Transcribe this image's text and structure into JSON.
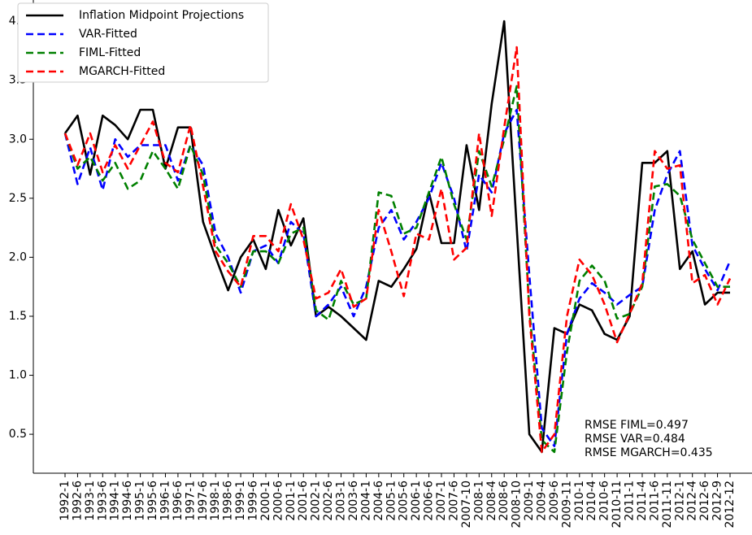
{
  "chart_data": {
    "type": "line",
    "categories": [
      "1992-1",
      "1992-6",
      "1993-1",
      "1993-6",
      "1994-1",
      "1994-6",
      "1995-1",
      "1995-6",
      "1996-1",
      "1996-6",
      "1997-1",
      "1997-6",
      "1998-1",
      "1998-6",
      "1999-1",
      "1999-6",
      "2000-1",
      "2000-6",
      "2001-1",
      "2001-6",
      "2002-1",
      "2002-6",
      "2003-1",
      "2003-6",
      "2004-1",
      "2004-6",
      "2005-1",
      "2005-6",
      "2006-1",
      "2006-6",
      "2007-1",
      "2007-6",
      "2007-10",
      "2008-1",
      "2008-4",
      "2008-6",
      "2008-10",
      "2009-1",
      "2009-4",
      "2009-6",
      "2009-11",
      "2010-1",
      "2010-4",
      "2010-6",
      "2010-11",
      "2011-1",
      "2011-4",
      "2011-6",
      "2011-11",
      "2012-1",
      "2012-4",
      "2012-6",
      "2012-9",
      "2012-12"
    ],
    "series": [
      {
        "name": "Inflation Midpoint Projections",
        "color": "#000000",
        "dash": "solid",
        "values": [
          3.05,
          3.2,
          2.7,
          3.2,
          3.12,
          3.0,
          3.25,
          3.25,
          2.75,
          3.1,
          3.1,
          2.3,
          2.0,
          1.72,
          2.0,
          2.15,
          1.9,
          2.4,
          2.1,
          2.33,
          1.5,
          1.58,
          1.5,
          1.4,
          1.3,
          1.8,
          1.75,
          1.9,
          2.07,
          2.55,
          2.12,
          2.12,
          2.95,
          2.4,
          3.3,
          4.0,
          2.25,
          0.5,
          0.35,
          1.4,
          1.35,
          1.6,
          1.55,
          1.35,
          1.3,
          1.5,
          2.8,
          2.8,
          2.9,
          1.9,
          2.05,
          1.6,
          1.7,
          1.7
        ]
      },
      {
        "name": "VAR-Fitted",
        "color": "#0000ff",
        "dash": "dashed",
        "values": [
          3.05,
          2.62,
          2.93,
          2.57,
          3.0,
          2.85,
          2.95,
          2.95,
          2.95,
          2.65,
          2.95,
          2.78,
          2.2,
          2.0,
          1.7,
          2.05,
          2.1,
          1.95,
          2.3,
          2.2,
          1.5,
          1.6,
          1.75,
          1.5,
          1.75,
          2.25,
          2.4,
          2.15,
          2.3,
          2.5,
          2.8,
          2.5,
          2.05,
          2.7,
          2.55,
          3.05,
          3.25,
          1.85,
          0.55,
          0.4,
          1.35,
          1.65,
          1.78,
          1.7,
          1.6,
          1.68,
          1.75,
          2.4,
          2.7,
          2.9,
          2.1,
          1.9,
          1.72,
          1.97
        ]
      },
      {
        "name": "FIML-Fitted",
        "color": "#008000",
        "dash": "dashed",
        "values": [
          3.05,
          2.75,
          2.85,
          2.65,
          2.8,
          2.58,
          2.65,
          2.9,
          2.75,
          2.58,
          2.95,
          2.7,
          2.1,
          1.95,
          1.75,
          2.05,
          2.05,
          1.95,
          2.2,
          2.25,
          1.55,
          1.47,
          1.8,
          1.6,
          1.65,
          2.55,
          2.52,
          2.2,
          2.25,
          2.55,
          2.85,
          2.45,
          2.15,
          2.9,
          2.6,
          3.0,
          3.45,
          1.55,
          0.45,
          0.35,
          1.2,
          1.8,
          1.93,
          1.8,
          1.48,
          1.52,
          1.75,
          2.6,
          2.62,
          2.52,
          2.15,
          1.95,
          1.75,
          1.75
        ]
      },
      {
        "name": "MGARCH-Fitted",
        "color": "#ff0000",
        "dash": "dashed",
        "values": [
          3.05,
          2.78,
          3.05,
          2.72,
          2.95,
          2.75,
          2.95,
          3.15,
          2.8,
          2.72,
          3.12,
          2.6,
          2.05,
          1.88,
          1.75,
          2.18,
          2.18,
          2.05,
          2.45,
          2.15,
          1.65,
          1.7,
          1.9,
          1.58,
          1.65,
          2.4,
          2.05,
          1.67,
          2.2,
          2.15,
          2.58,
          1.98,
          2.08,
          3.05,
          2.35,
          3.1,
          3.78,
          1.5,
          0.35,
          0.5,
          1.5,
          1.98,
          1.85,
          1.6,
          1.28,
          1.52,
          1.78,
          2.9,
          2.75,
          2.78,
          1.78,
          1.85,
          1.6,
          1.82
        ]
      }
    ],
    "annotations": [
      "RMSE FIML=0.497",
      "RMSE VAR=0.484",
      "RMSE MGARCH=0.435"
    ],
    "ylim": [
      0.17,
      4.18
    ],
    "yticks": [
      0.5,
      {
        "value": 1,
        "label": "1.0"
      },
      1.5,
      {
        "value": 2,
        "label": "2.0"
      },
      2.5,
      {
        "value": 3,
        "label": "3.0"
      },
      3.5,
      {
        "value": 4,
        "label": "4.0"
      }
    ],
    "legend": "upper-left",
    "grid": false
  }
}
